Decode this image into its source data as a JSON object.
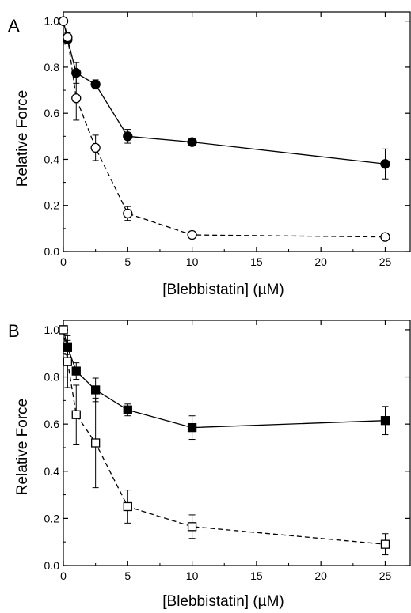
{
  "chart_data": [
    {
      "panel": "A",
      "type": "line",
      "xlabel": "[Blebbistatin] (µM)",
      "ylabel": "Relative Force",
      "xlim": [
        0,
        27
      ],
      "ylim": [
        0,
        1.04
      ],
      "xticks": [
        0,
        5,
        10,
        15,
        20,
        25
      ],
      "yticks": [
        0.0,
        0.2,
        0.4,
        0.6,
        0.8,
        1.0
      ],
      "grid": false,
      "series": [
        {
          "marker": "filled-circle",
          "line": "solid",
          "x": [
            0,
            0.33,
            1.0,
            2.5,
            5,
            10,
            25
          ],
          "y": [
            1.0,
            0.92,
            0.775,
            0.725,
            0.5,
            0.475,
            0.38
          ],
          "err": [
            0.015,
            0.015,
            0.045,
            0.02,
            0.03,
            0.01,
            0.065
          ]
        },
        {
          "marker": "open-circle",
          "line": "dashed",
          "x": [
            0,
            0.33,
            1.0,
            2.5,
            5,
            10,
            25
          ],
          "y": [
            1.0,
            0.93,
            0.665,
            0.45,
            0.165,
            0.072,
            0.063
          ],
          "err": [
            0.01,
            0.02,
            0.095,
            0.055,
            0.03,
            0.01,
            0.01
          ]
        }
      ]
    },
    {
      "panel": "B",
      "type": "line",
      "xlabel": "[Blebbistatin] (µM)",
      "ylabel": "Relative Force",
      "xlim": [
        0,
        27
      ],
      "ylim": [
        0,
        1.04
      ],
      "xticks": [
        0,
        5,
        10,
        15,
        20,
        25
      ],
      "yticks": [
        0.0,
        0.2,
        0.4,
        0.6,
        0.8,
        1.0
      ],
      "grid": false,
      "series": [
        {
          "marker": "filled-square",
          "line": "solid",
          "x": [
            0,
            0.33,
            1.0,
            2.5,
            5,
            10,
            25
          ],
          "y": [
            1.0,
            0.925,
            0.825,
            0.745,
            0.66,
            0.585,
            0.615
          ],
          "err": [
            0.01,
            0.03,
            0.035,
            0.05,
            0.025,
            0.05,
            0.06
          ]
        },
        {
          "marker": "open-square",
          "line": "dashed",
          "x": [
            0,
            0.33,
            1.0,
            2.5,
            5,
            10,
            25
          ],
          "y": [
            1.0,
            0.865,
            0.64,
            0.52,
            0.25,
            0.165,
            0.09
          ],
          "err": [
            0.015,
            0.11,
            0.125,
            0.19,
            0.07,
            0.05,
            0.045
          ]
        }
      ]
    }
  ]
}
